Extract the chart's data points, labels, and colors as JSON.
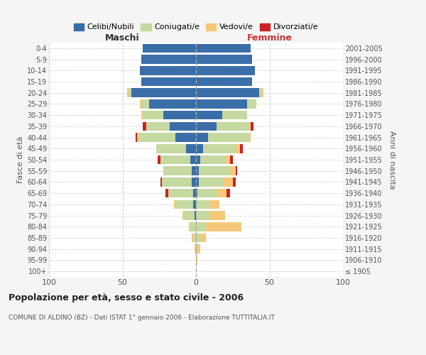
{
  "age_groups": [
    "100+",
    "95-99",
    "90-94",
    "85-89",
    "80-84",
    "75-79",
    "70-74",
    "65-69",
    "60-64",
    "55-59",
    "50-54",
    "45-49",
    "40-44",
    "35-39",
    "30-34",
    "25-29",
    "20-24",
    "15-19",
    "10-14",
    "5-9",
    "0-4"
  ],
  "birth_years": [
    "≤ 1905",
    "1906-1910",
    "1911-1915",
    "1916-1920",
    "1921-1925",
    "1926-1930",
    "1931-1935",
    "1936-1940",
    "1941-1945",
    "1946-1950",
    "1951-1955",
    "1956-1960",
    "1961-1965",
    "1966-1970",
    "1971-1975",
    "1976-1980",
    "1981-1985",
    "1986-1990",
    "1991-1995",
    "1996-2000",
    "2001-2005"
  ],
  "colors": {
    "celibe": "#3a6ea8",
    "coniugato": "#c5d9a0",
    "vedovo": "#f5c97a",
    "divorziato": "#cc2222"
  },
  "males": {
    "celibe": [
      0,
      0,
      0,
      0,
      0,
      1,
      2,
      2,
      3,
      3,
      4,
      7,
      14,
      18,
      22,
      32,
      44,
      37,
      38,
      37,
      36
    ],
    "coniugato": [
      0,
      0,
      0,
      2,
      4,
      7,
      12,
      17,
      20,
      19,
      20,
      20,
      25,
      16,
      14,
      5,
      2,
      0,
      0,
      0,
      0
    ],
    "vedovo": [
      0,
      0,
      1,
      1,
      1,
      1,
      1,
      0,
      0,
      0,
      0,
      0,
      1,
      0,
      1,
      1,
      1,
      0,
      0,
      0,
      0
    ],
    "divorziato": [
      0,
      0,
      0,
      0,
      0,
      0,
      0,
      2,
      1,
      0,
      2,
      0,
      1,
      2,
      0,
      0,
      0,
      0,
      0,
      0,
      0
    ]
  },
  "females": {
    "nubile": [
      0,
      0,
      0,
      0,
      0,
      0,
      0,
      1,
      2,
      2,
      3,
      5,
      8,
      14,
      18,
      35,
      43,
      38,
      40,
      38,
      37
    ],
    "coniugata": [
      0,
      0,
      1,
      3,
      7,
      9,
      9,
      14,
      17,
      21,
      17,
      22,
      28,
      22,
      17,
      6,
      2,
      0,
      0,
      0,
      0
    ],
    "vedova": [
      0,
      1,
      2,
      4,
      24,
      11,
      7,
      6,
      6,
      4,
      3,
      3,
      1,
      1,
      0,
      0,
      1,
      0,
      0,
      0,
      0
    ],
    "divorziata": [
      0,
      0,
      0,
      0,
      0,
      0,
      0,
      2,
      2,
      1,
      2,
      2,
      0,
      2,
      0,
      0,
      0,
      0,
      0,
      0,
      0
    ]
  },
  "title_main": "Popolazione per età, sesso e stato civile - 2006",
  "title_sub": "COMUNE DI ALDINO (BZ) - Dati ISTAT 1° gennaio 2006 - Elaborazione TUTTITALIA.IT",
  "xlabel_left": "Maschi",
  "xlabel_right": "Femmine",
  "ylabel_left": "Fasce di età",
  "ylabel_right": "Anni di nascita",
  "xlim": 100,
  "bg_color": "#f5f5f5",
  "plot_bg": "#ffffff",
  "grid_color": "#cccccc",
  "legend_labels": [
    "Celibi/Nubili",
    "Coniugati/e",
    "Vedovi/e",
    "Divorziati/e"
  ]
}
